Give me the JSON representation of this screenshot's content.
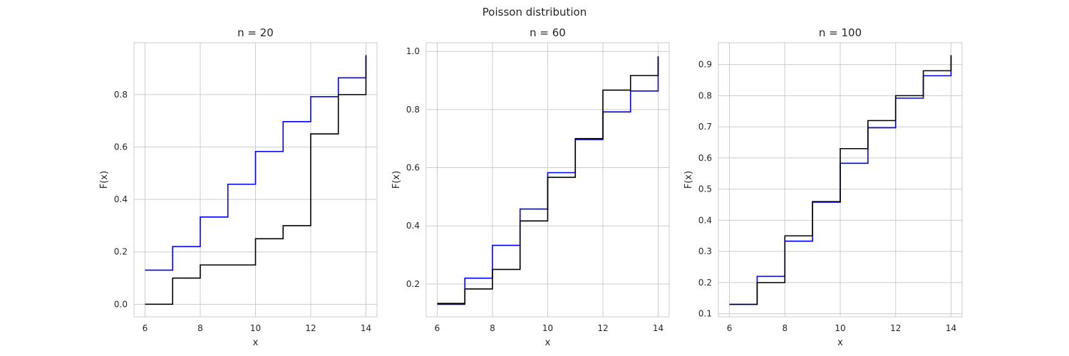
{
  "figure": {
    "suptitle": "Poisson distribution"
  },
  "colors": {
    "theoretical": "#0000ff",
    "empirical": "#000000",
    "grid": "#cccccc"
  },
  "chart_data": [
    {
      "type": "line",
      "step": "post",
      "title": "n = 20",
      "xlabel": "x",
      "ylabel": "F(x)",
      "xlim": [
        5.6,
        14.4
      ],
      "ylim": [
        -0.048,
        0.998
      ],
      "xticks": [
        6,
        8,
        10,
        12,
        14
      ],
      "xtick_labels": [
        "6",
        "8",
        "10",
        "12",
        "14"
      ],
      "yticks": [
        0.0,
        0.2,
        0.4,
        0.6,
        0.8
      ],
      "ytick_labels": [
        "0.0",
        "0.2",
        "0.4",
        "0.6",
        "0.8"
      ],
      "grid": true,
      "x": [
        6,
        7,
        8,
        9,
        10,
        11,
        12,
        13,
        14
      ],
      "series": [
        {
          "color": "#0000ff",
          "values": [
            0.13,
            0.22,
            0.333,
            0.458,
            0.583,
            0.697,
            0.792,
            0.864,
            0.864
          ],
          "end": 0.95
        },
        {
          "color": "#000000",
          "values": [
            0.0,
            0.1,
            0.15,
            0.15,
            0.25,
            0.3,
            0.65,
            0.8,
            0.8
          ],
          "end": 0.95
        }
      ]
    },
    {
      "type": "line",
      "step": "post",
      "title": "n = 60",
      "xlabel": "x",
      "ylabel": "F(x)",
      "xlim": [
        5.6,
        14.4
      ],
      "ylim": [
        0.087,
        1.03
      ],
      "xticks": [
        6,
        8,
        10,
        12,
        14
      ],
      "xtick_labels": [
        "6",
        "8",
        "10",
        "12",
        "14"
      ],
      "yticks": [
        0.2,
        0.4,
        0.6,
        0.8,
        1.0
      ],
      "ytick_labels": [
        "0.2",
        "0.4",
        "0.6",
        "0.8",
        "1.0"
      ],
      "grid": true,
      "x": [
        6,
        7,
        8,
        9,
        10,
        11,
        12,
        13,
        14
      ],
      "series": [
        {
          "color": "#0000ff",
          "values": [
            0.13,
            0.22,
            0.333,
            0.458,
            0.583,
            0.697,
            0.792,
            0.864,
            0.864
          ],
          "end": 0.983
        },
        {
          "color": "#000000",
          "values": [
            0.133,
            0.183,
            0.25,
            0.417,
            0.567,
            0.7,
            0.867,
            0.917,
            0.917
          ],
          "end": 0.983
        }
      ]
    },
    {
      "type": "line",
      "step": "post",
      "title": "n = 100",
      "xlabel": "x",
      "ylabel": "F(x)",
      "xlim": [
        5.6,
        14.4
      ],
      "ylim": [
        0.09,
        0.97
      ],
      "xticks": [
        6,
        8,
        10,
        12,
        14
      ],
      "xtick_labels": [
        "6",
        "8",
        "10",
        "12",
        "14"
      ],
      "yticks": [
        0.1,
        0.2,
        0.3,
        0.4,
        0.5,
        0.6,
        0.7,
        0.8,
        0.9
      ],
      "ytick_labels": [
        "0.1",
        "0.2",
        "0.3",
        "0.4",
        "0.5",
        "0.6",
        "0.7",
        "0.8",
        "0.9"
      ],
      "grid": true,
      "x": [
        6,
        7,
        8,
        9,
        10,
        11,
        12,
        13,
        14
      ],
      "series": [
        {
          "color": "#0000ff",
          "values": [
            0.13,
            0.22,
            0.333,
            0.458,
            0.583,
            0.697,
            0.792,
            0.864,
            0.864
          ],
          "end": 0.93
        },
        {
          "color": "#000000",
          "values": [
            0.13,
            0.2,
            0.35,
            0.46,
            0.63,
            0.72,
            0.8,
            0.88,
            0.88
          ],
          "end": 0.93
        }
      ]
    }
  ]
}
